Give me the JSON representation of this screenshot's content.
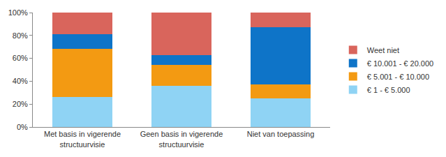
{
  "chart_data": {
    "type": "bar",
    "stacked": true,
    "categories": [
      "Met basis in vigerende structuurvisie",
      "Geen basis in vigerende structuurvisie",
      "Niet van toepassing"
    ],
    "series": [
      {
        "name": "€ 1 - € 5.000",
        "color": "#8fd3f4",
        "values": [
          26,
          36,
          25
        ]
      },
      {
        "name": "€ 5.001 - € 10.000",
        "color": "#f39a12",
        "values": [
          42,
          18,
          12
        ]
      },
      {
        "name": "€ 10.001 - € 20.000",
        "color": "#0e74c8",
        "values": [
          13,
          9,
          50
        ]
      },
      {
        "name": "Weet niet",
        "color": "#d9655c",
        "values": [
          19,
          37,
          13
        ]
      }
    ],
    "ylim": [
      0,
      100
    ],
    "yticks": [
      {
        "value": 0,
        "label": "0%"
      },
      {
        "value": 20,
        "label": "20%"
      },
      {
        "value": 40,
        "label": "40%"
      },
      {
        "value": 60,
        "label": "60%"
      },
      {
        "value": 80,
        "label": "80%"
      },
      {
        "value": 100,
        "label": "100%"
      }
    ],
    "grid": false,
    "legend": "right"
  }
}
